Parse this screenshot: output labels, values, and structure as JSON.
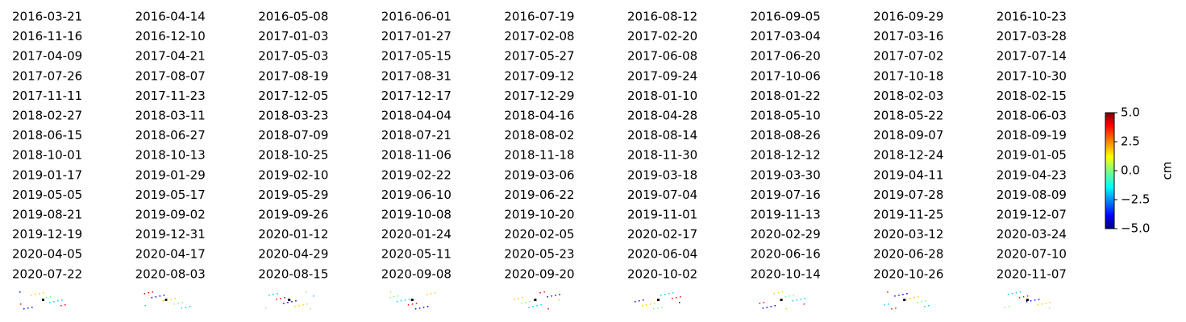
{
  "chart_data": {
    "type": "image-grid",
    "panel_titles": [
      "2016-03-21",
      "2016-04-14",
      "2016-05-08",
      "2016-06-01",
      "2016-07-19",
      "2016-08-12",
      "2016-09-05",
      "2016-09-29",
      "2016-10-23",
      "2016-11-16",
      "2016-12-10",
      "2017-01-03",
      "2017-01-27",
      "2017-02-08",
      "2017-02-20",
      "2017-03-04",
      "2017-03-16",
      "2017-03-28",
      "2017-04-09",
      "2017-04-21",
      "2017-05-03",
      "2017-05-15",
      "2017-05-27",
      "2017-06-08",
      "2017-06-20",
      "2017-07-02",
      "2017-07-14",
      "2017-07-26",
      "2017-08-07",
      "2017-08-19",
      "2017-08-31",
      "2017-09-12",
      "2017-09-24",
      "2017-10-06",
      "2017-10-18",
      "2017-10-30",
      "2017-11-11",
      "2017-11-23",
      "2017-12-05",
      "2017-12-17",
      "2017-12-29",
      "2018-01-10",
      "2018-01-22",
      "2018-02-03",
      "2018-02-15",
      "2018-02-27",
      "2018-03-11",
      "2018-03-23",
      "2018-04-04",
      "2018-04-16",
      "2018-04-28",
      "2018-05-10",
      "2018-05-22",
      "2018-06-03",
      "2018-06-15",
      "2018-06-27",
      "2018-07-09",
      "2018-07-21",
      "2018-08-02",
      "2018-08-14",
      "2018-08-26",
      "2018-09-07",
      "2018-09-19",
      "2018-10-01",
      "2018-10-13",
      "2018-10-25",
      "2018-11-06",
      "2018-11-18",
      "2018-11-30",
      "2018-12-12",
      "2018-12-24",
      "2019-01-05",
      "2019-01-17",
      "2019-01-29",
      "2019-02-10",
      "2019-02-22",
      "2019-03-06",
      "2019-03-18",
      "2019-03-30",
      "2019-04-11",
      "2019-04-23",
      "2019-05-05",
      "2019-05-17",
      "2019-05-29",
      "2019-06-10",
      "2019-06-22",
      "2019-07-04",
      "2019-07-16",
      "2019-07-28",
      "2019-08-09",
      "2019-08-21",
      "2019-09-02",
      "2019-09-26",
      "2019-10-08",
      "2019-10-20",
      "2019-11-01",
      "2019-11-13",
      "2019-11-25",
      "2019-12-07",
      "2019-12-19",
      "2019-12-31",
      "2020-01-12",
      "2020-01-24",
      "2020-02-05",
      "2020-02-17",
      "2020-02-29",
      "2020-03-12",
      "2020-03-24",
      "2020-04-05",
      "2020-04-17",
      "2020-04-29",
      "2020-05-11",
      "2020-05-23",
      "2020-06-04",
      "2020-06-16",
      "2020-06-28",
      "2020-07-10",
      "2020-07-22",
      "2020-08-03",
      "2020-08-15",
      "2020-09-08",
      "2020-09-20",
      "2020-10-02",
      "2020-10-14",
      "2020-10-26",
      "2020-11-07"
    ],
    "columns": 9,
    "colorbar": {
      "label": "cm",
      "colormap": "jet",
      "ylim": [
        -5,
        5
      ],
      "yticks": [
        {
          "value": -5,
          "label": "−5.0"
        },
        {
          "value": -2.5,
          "label": "−2.5"
        },
        {
          "value": 0,
          "label": "0.0"
        },
        {
          "value": 2.5,
          "label": "2.5"
        },
        {
          "value": 5,
          "label": "5.0"
        }
      ]
    }
  }
}
